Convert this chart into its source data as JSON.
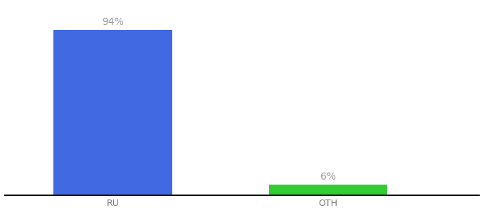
{
  "categories": [
    "RU",
    "OTH"
  ],
  "values": [
    94,
    6
  ],
  "bar_colors": [
    "#4169e1",
    "#33cc33"
  ],
  "label_texts": [
    "94%",
    "6%"
  ],
  "ylim": [
    0,
    108
  ],
  "background_color": "#ffffff",
  "label_color": "#999999",
  "label_fontsize": 10,
  "tick_fontsize": 9,
  "tick_color": "#777777",
  "bar_width": 0.55,
  "xlim": [
    -0.5,
    1.7
  ]
}
